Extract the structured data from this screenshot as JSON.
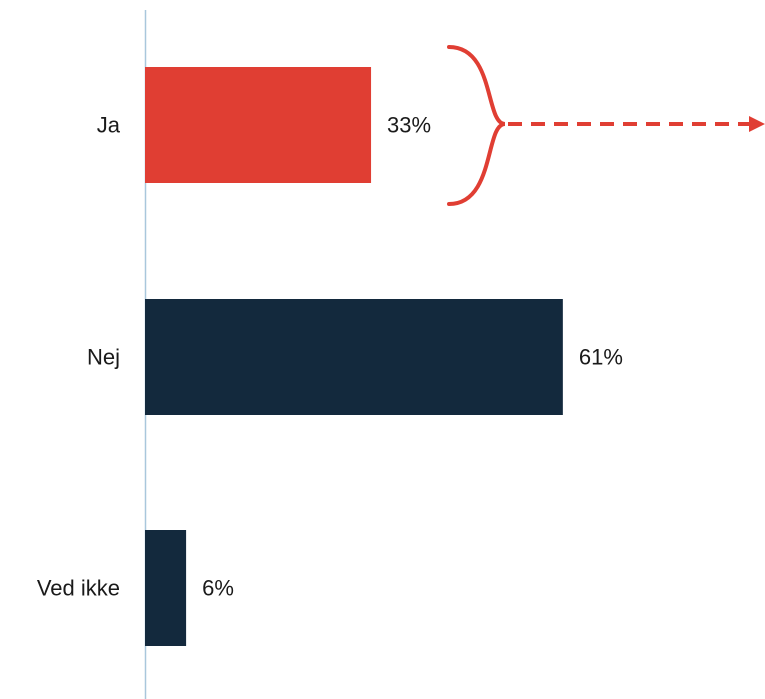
{
  "chart_data": {
    "type": "bar",
    "orientation": "horizontal",
    "categories": [
      "Ja",
      "Nej",
      "Ved ikke"
    ],
    "values": [
      33,
      61,
      6
    ],
    "value_labels": [
      "33%",
      "61%",
      "6%"
    ],
    "unit": "%",
    "xlim": [
      0,
      100
    ],
    "grid": false,
    "colors": {
      "highlight": "#E03E33",
      "default": "#13293D",
      "axis": "#A9C7DC"
    },
    "highlighted_category": "Ja",
    "annotation": "brace with dashed arrow pointing right from the Ja bar"
  }
}
